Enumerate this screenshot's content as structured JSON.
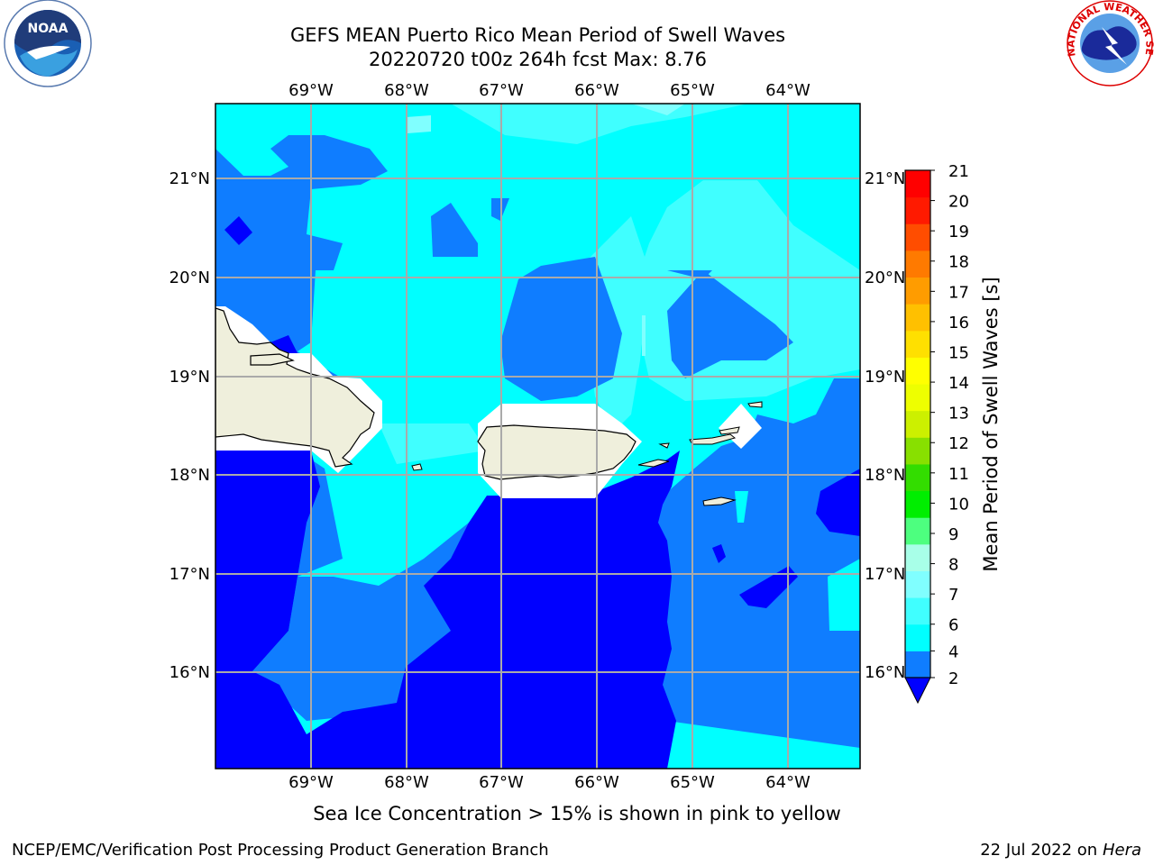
{
  "title_line1": "GEFS MEAN Puerto Rico Mean Period of Swell Waves",
  "title_line2": "20220720 t00z 264h fcst   Max: 8.76",
  "ice_note": "Sea Ice Concentration > 15% is shown in pink to yellow",
  "credit": "NCEP/EMC/Verification Post Processing Product Generation Branch",
  "stamp_prefix": "22 Jul 2022 on ",
  "stamp_host": "Hera",
  "logos": {
    "left": {
      "icon": "noaa-logo-icon",
      "text": "NOAA"
    },
    "right": {
      "icon": "nws-logo-icon",
      "text": "NATIONAL WEATHER SERVICE"
    }
  },
  "map": {
    "lon_labels": [
      "69°W",
      "68°W",
      "67°W",
      "66°W",
      "65°W",
      "64°W"
    ],
    "lat_labels": [
      "21°N",
      "20°N",
      "19°N",
      "18°N",
      "17°N",
      "16°N"
    ],
    "lon_range": [
      -69.99,
      -63.25
    ],
    "lat_range": [
      15.0,
      21.75
    ],
    "land_color": "#efefdc",
    "grid": true
  },
  "colorbar": {
    "label": "Mean Period of Swell Waves [s]",
    "ticks": [
      "21",
      "20",
      "19",
      "18",
      "17",
      "16",
      "15",
      "14",
      "13",
      "12",
      "11",
      "10",
      "9",
      "8",
      "7",
      "6",
      "4",
      "2"
    ],
    "extend": "min",
    "under_color": "#0000ff",
    "colors": [
      "#0f7dff",
      "#00ffff",
      "#40ffff",
      "#80ffff",
      "#a8ffe8",
      "#4dff7f",
      "#00ee00",
      "#33dd00",
      "#88e000",
      "#ccf000",
      "#eeff00",
      "#ffff00",
      "#ffe000",
      "#ffc000",
      "#ff9c00",
      "#ff7a00",
      "#ff4d00",
      "#ff1a00",
      "#ff0000"
    ]
  },
  "chart_data": {
    "type": "heatmap",
    "title": "GEFS MEAN Puerto Rico Mean Period of Swell Waves",
    "subtitle": "20220720 t00z 264h fcst   Max: 8.76",
    "max_value": 8.76,
    "colorbar_label": "Mean Period of Swell Waves [s]",
    "colorbar_range": [
      2,
      21
    ],
    "x_ticks": [
      "69°W",
      "68°W",
      "67°W",
      "66°W",
      "65°W",
      "64°W"
    ],
    "y_ticks": [
      "21°N",
      "20°N",
      "19°N",
      "18°N",
      "17°N",
      "16°N"
    ]
  }
}
